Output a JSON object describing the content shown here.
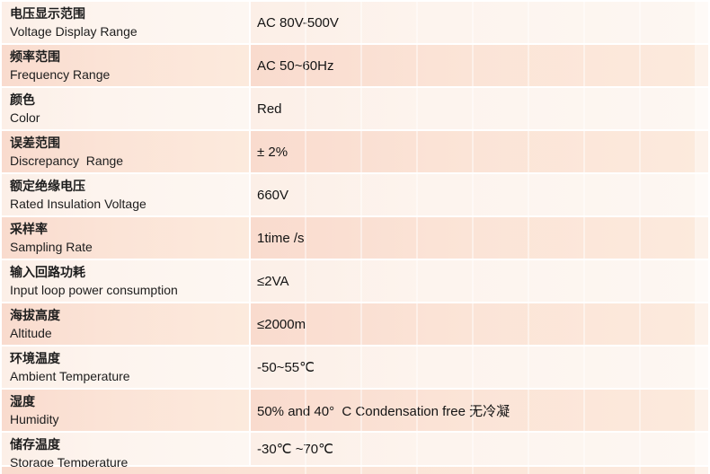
{
  "table": {
    "description": "Product specification table, bilingual Chinese/English parameter names with values",
    "columns": [
      "parameter",
      "value"
    ],
    "rows": [
      {
        "zh": "电压显示范围",
        "en": "Voltage Display Range",
        "value": "AC 80V-500V",
        "tone": "light"
      },
      {
        "zh": "频率范围",
        "en": "Frequency Range",
        "value": "AC 50~60Hz",
        "tone": "pink"
      },
      {
        "zh": "颜色",
        "en": "Color",
        "value": "Red",
        "tone": "light"
      },
      {
        "zh": "误差范围",
        "en": "Discrepancy  Range",
        "value": "± 2%",
        "tone": "pink"
      },
      {
        "zh": "额定绝缘电压",
        "en": "Rated Insulation Voltage",
        "value": "660V",
        "tone": "light"
      },
      {
        "zh": "采样率",
        "en": "Sampling Rate",
        "value": "1time /s",
        "tone": "pink"
      },
      {
        "zh": "输入回路功耗",
        "en": "Input loop power consumption",
        "value": "≤2VA",
        "tone": "light"
      },
      {
        "zh": "海拔高度",
        "en": "Altitude",
        "value": "≤2000m",
        "tone": "pink"
      },
      {
        "zh": "环境温度",
        "en": "Ambient Temperature",
        "value": "-50~55℃",
        "tone": "light"
      },
      {
        "zh": "湿度",
        "en": "Humidity",
        "value": "50% and 40°  C Condensation free 无冷凝",
        "tone": "pink"
      },
      {
        "zh": "储存温度",
        "en": "Storage Temperature",
        "value": "-30℃ ~70℃",
        "tone": "light"
      }
    ],
    "colors": {
      "pink_row_left": "#f9dbce",
      "pink_row_right": "#fceadd",
      "light_row_left": "#fcefe7",
      "light_row_right": "#fdf7f2",
      "text": "#1d1d1d",
      "divider": "#ffffff"
    },
    "gridline_x_positions": [
      339,
      401,
      463,
      525,
      587,
      649,
      711,
      773
    ]
  }
}
